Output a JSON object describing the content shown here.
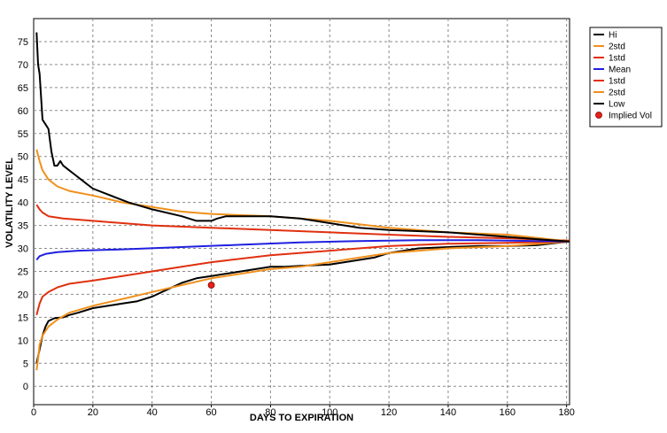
{
  "chart_data": {
    "type": "line",
    "xlabel": "DAYS TO EXPIRATION",
    "ylabel": "VOLATILITY LEVEL",
    "xlim": [
      0,
      181
    ],
    "ylim": [
      -4,
      80
    ],
    "xticks": [
      0,
      20,
      40,
      60,
      80,
      100,
      120,
      140,
      160,
      180
    ],
    "yticks": [
      0,
      5,
      10,
      15,
      20,
      25,
      30,
      35,
      40,
      45,
      50,
      55,
      60,
      65,
      70,
      75
    ],
    "grid": true,
    "legend_position": "top-right",
    "series": [
      {
        "name": "Hi",
        "color": "#000000",
        "points": [
          [
            1,
            77
          ],
          [
            1.5,
            70
          ],
          [
            2,
            68
          ],
          [
            3,
            58
          ],
          [
            4,
            57
          ],
          [
            5,
            56
          ],
          [
            6,
            51
          ],
          [
            7,
            48
          ],
          [
            8,
            48
          ],
          [
            9,
            49
          ],
          [
            10,
            48
          ],
          [
            12,
            47
          ],
          [
            14,
            46
          ],
          [
            16,
            45
          ],
          [
            18,
            44
          ],
          [
            20,
            43
          ],
          [
            24,
            42
          ],
          [
            28,
            41
          ],
          [
            32,
            40
          ],
          [
            40,
            38.5
          ],
          [
            50,
            37
          ],
          [
            55,
            36
          ],
          [
            60,
            36
          ],
          [
            62,
            36.5
          ],
          [
            65,
            37
          ],
          [
            70,
            37
          ],
          [
            80,
            37
          ],
          [
            90,
            36.5
          ],
          [
            100,
            35.5
          ],
          [
            110,
            34.5
          ],
          [
            120,
            34
          ],
          [
            140,
            33.5
          ],
          [
            160,
            32.5
          ],
          [
            170,
            32
          ],
          [
            181,
            31.5
          ]
        ]
      },
      {
        "name": "2std",
        "color": "#f0901c",
        "points": [
          [
            1,
            51.5
          ],
          [
            2,
            49
          ],
          [
            3,
            47
          ],
          [
            5,
            45
          ],
          [
            8,
            43.5
          ],
          [
            12,
            42.5
          ],
          [
            20,
            41.5
          ],
          [
            30,
            40
          ],
          [
            40,
            39
          ],
          [
            50,
            38
          ],
          [
            60,
            37.5
          ],
          [
            80,
            37
          ],
          [
            100,
            36
          ],
          [
            120,
            34.5
          ],
          [
            140,
            33.5
          ],
          [
            160,
            33
          ],
          [
            181,
            31.5
          ]
        ]
      },
      {
        "name": "1std",
        "color": "#e03010",
        "points": [
          [
            1,
            39.5
          ],
          [
            2,
            38.5
          ],
          [
            3,
            37.8
          ],
          [
            5,
            37
          ],
          [
            10,
            36.5
          ],
          [
            20,
            36
          ],
          [
            30,
            35.5
          ],
          [
            40,
            35
          ],
          [
            60,
            34.5
          ],
          [
            80,
            34
          ],
          [
            100,
            33.5
          ],
          [
            120,
            33
          ],
          [
            140,
            32.5
          ],
          [
            160,
            32.2
          ],
          [
            181,
            31.7
          ]
        ]
      },
      {
        "name": "Mean",
        "color": "#2020e0",
        "points": [
          [
            1,
            27.5
          ],
          [
            2,
            28.3
          ],
          [
            4,
            28.8
          ],
          [
            8,
            29.2
          ],
          [
            15,
            29.5
          ],
          [
            30,
            29.8
          ],
          [
            50,
            30.3
          ],
          [
            70,
            30.8
          ],
          [
            90,
            31.3
          ],
          [
            110,
            31.6
          ],
          [
            130,
            31.8
          ],
          [
            150,
            31.8
          ],
          [
            181,
            31.5
          ]
        ]
      },
      {
        "name": "1std",
        "color": "#e03010",
        "points": [
          [
            1,
            15.5
          ],
          [
            2,
            18
          ],
          [
            3,
            19.5
          ],
          [
            5,
            20.5
          ],
          [
            8,
            21.5
          ],
          [
            12,
            22.3
          ],
          [
            20,
            23
          ],
          [
            30,
            24
          ],
          [
            40,
            25
          ],
          [
            50,
            26
          ],
          [
            60,
            27
          ],
          [
            80,
            28.5
          ],
          [
            100,
            29.5
          ],
          [
            120,
            30.5
          ],
          [
            140,
            31
          ],
          [
            160,
            31.2
          ],
          [
            181,
            31.5
          ]
        ]
      },
      {
        "name": "2std",
        "color": "#f0901c",
        "points": [
          [
            1,
            3.5
          ],
          [
            1.5,
            6
          ],
          [
            2,
            9
          ],
          [
            3,
            11
          ],
          [
            5,
            13
          ],
          [
            8,
            14.5
          ],
          [
            12,
            16
          ],
          [
            20,
            17.5
          ],
          [
            30,
            19
          ],
          [
            40,
            20.5
          ],
          [
            50,
            22
          ],
          [
            60,
            23.5
          ],
          [
            70,
            24.5
          ],
          [
            80,
            25.5
          ],
          [
            90,
            26
          ],
          [
            100,
            27
          ],
          [
            110,
            28
          ],
          [
            120,
            29
          ],
          [
            140,
            30
          ],
          [
            160,
            30.5
          ],
          [
            181,
            31.5
          ]
        ]
      },
      {
        "name": "Low",
        "color": "#000000",
        "points": [
          [
            1,
            5
          ],
          [
            2,
            8
          ],
          [
            3,
            11
          ],
          [
            4,
            13
          ],
          [
            5,
            14.2
          ],
          [
            7,
            14.8
          ],
          [
            10,
            15
          ],
          [
            12,
            15.5
          ],
          [
            15,
            16
          ],
          [
            20,
            17
          ],
          [
            25,
            17.5
          ],
          [
            30,
            18
          ],
          [
            35,
            18.5
          ],
          [
            40,
            19.5
          ],
          [
            45,
            21
          ],
          [
            50,
            22.5
          ],
          [
            55,
            23.5
          ],
          [
            60,
            24
          ],
          [
            65,
            24.5
          ],
          [
            70,
            25
          ],
          [
            75,
            25.5
          ],
          [
            80,
            26
          ],
          [
            85,
            26
          ],
          [
            90,
            26.2
          ],
          [
            100,
            26.5
          ],
          [
            105,
            27
          ],
          [
            110,
            27.5
          ],
          [
            115,
            28
          ],
          [
            120,
            29
          ],
          [
            130,
            30
          ],
          [
            140,
            30.3
          ],
          [
            150,
            30.5
          ],
          [
            160,
            30.5
          ],
          [
            170,
            30.7
          ],
          [
            181,
            31.5
          ]
        ]
      }
    ],
    "markers": [
      {
        "name": "Implied Vol",
        "x": 60,
        "y": 22,
        "color": "#e82018"
      }
    ]
  }
}
